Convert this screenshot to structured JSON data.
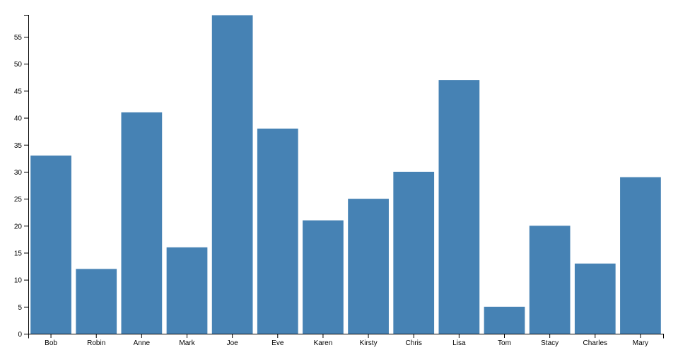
{
  "chart_data": {
    "type": "bar",
    "categories": [
      "Bob",
      "Robin",
      "Anne",
      "Mark",
      "Joe",
      "Eve",
      "Karen",
      "Kirsty",
      "Chris",
      "Lisa",
      "Tom",
      "Stacy",
      "Charles",
      "Mary"
    ],
    "values": [
      33,
      12,
      41,
      16,
      59,
      38,
      21,
      25,
      30,
      47,
      5,
      20,
      13,
      29
    ],
    "color": "#4682b4",
    "ylim": [
      0,
      59
    ],
    "yticks": [
      0,
      5,
      10,
      15,
      20,
      25,
      30,
      35,
      40,
      45,
      50,
      55
    ],
    "grid": false
  }
}
